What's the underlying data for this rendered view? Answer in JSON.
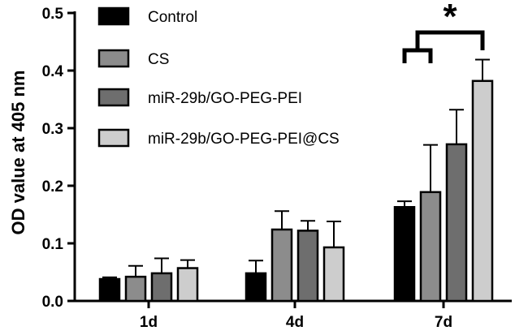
{
  "chart_data": {
    "type": "bar",
    "title": "",
    "xlabel": "",
    "ylabel": "OD value at 405 nm",
    "ylim": [
      0,
      0.5
    ],
    "yticks": [
      "0.0",
      "0.1",
      "0.2",
      "0.3",
      "0.4",
      "0.5"
    ],
    "categories": [
      "1d",
      "4d",
      "7d"
    ],
    "legend_position": "top-left",
    "grid": false,
    "series": [
      {
        "name": "Control",
        "color": "#000000",
        "values": [
          0.038,
          0.048,
          0.163
        ],
        "errors": [
          0.003,
          0.022,
          0.01
        ]
      },
      {
        "name": "CS",
        "color": "#8c8c8c",
        "values": [
          0.042,
          0.124,
          0.189
        ],
        "errors": [
          0.019,
          0.032,
          0.082
        ]
      },
      {
        "name": "miR-29b/GO-PEG-PEI",
        "color": "#6e6e6e",
        "values": [
          0.048,
          0.122,
          0.272
        ],
        "errors": [
          0.026,
          0.017,
          0.06
        ]
      },
      {
        "name": "miR-29b/GO-PEG-PEI@CS",
        "color": "#cdcdcd",
        "values": [
          0.057,
          0.093,
          0.382
        ],
        "errors": [
          0.014,
          0.045,
          0.037
        ]
      }
    ],
    "significance": {
      "label": "*",
      "category": "7d",
      "from_series": [
        0,
        1
      ],
      "to_series": 3
    }
  }
}
